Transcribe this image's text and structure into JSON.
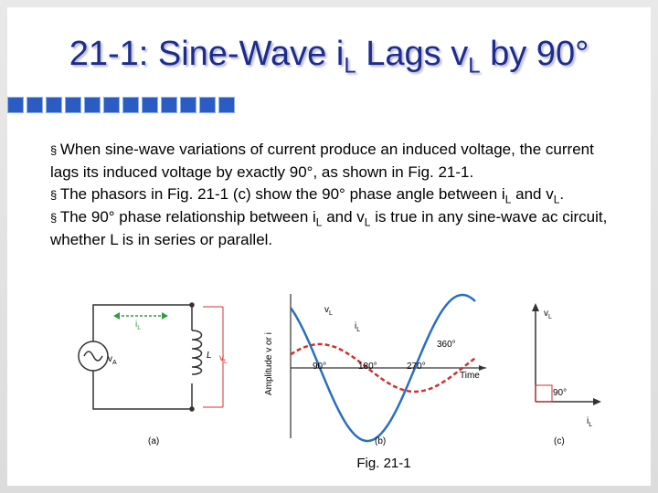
{
  "title": [
    "21-1: Sine-Wave i",
    "L",
    " Lags v",
    "L",
    " by 90°"
  ],
  "bullets": [
    [
      "When sine-wave variations of current produce an induced voltage, the current lags its induced voltage by exactly 90°, as shown in Fig. 21-1."
    ],
    [
      "The phasors in Fig. 21-1 (c) show the 90° phase angle between i",
      "L",
      " and v",
      "L",
      "."
    ],
    [
      "The 90° phase relationship between i",
      "L",
      " and v",
      "L",
      " is true in any sine-wave ac circuit, whether L is in series or parallel."
    ]
  ],
  "figure": {
    "a": {
      "current": [
        "i",
        "L"
      ],
      "source": [
        "v",
        "A"
      ],
      "inductor": [
        "L"
      ],
      "voltage": [
        "v",
        "L"
      ],
      "caption": [
        "(a)"
      ]
    },
    "b": {
      "v_label": [
        "v",
        "L"
      ],
      "i_label": [
        "i",
        "L"
      ],
      "y_axis": [
        "Amplitude v or i"
      ],
      "x_axis": [
        "Time"
      ],
      "angles": [
        [
          "90°"
        ],
        [
          "180°"
        ],
        [
          "270°"
        ],
        [
          "360°"
        ]
      ],
      "caption": [
        "(b)"
      ]
    },
    "c": {
      "v_label": [
        "v",
        "L"
      ],
      "i_label": [
        "i",
        "L"
      ],
      "angle": [
        "90°"
      ],
      "caption": [
        "(c)"
      ]
    },
    "caption": "Fig. 21-1"
  }
}
